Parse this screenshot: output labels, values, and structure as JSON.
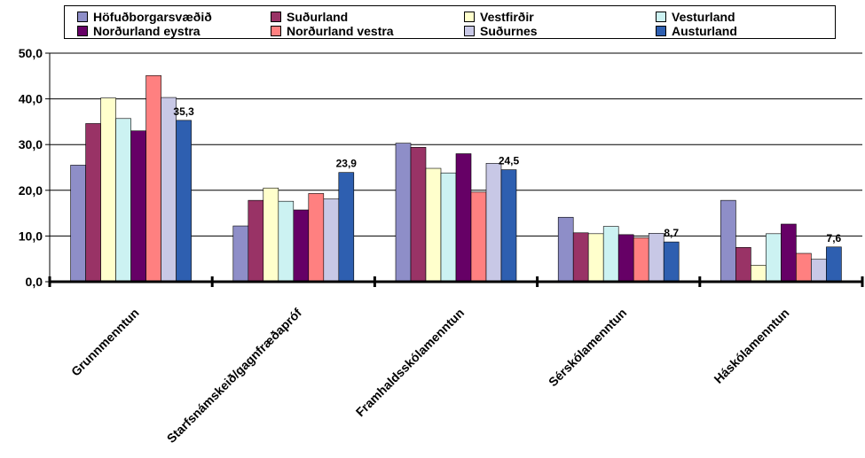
{
  "chart_data": {
    "type": "bar",
    "categories": [
      "Grunnmenntun",
      "Starfsnámskeið/gagnfræðapróf",
      "Framhaldsskólamenntun",
      "Sérskólamenntun",
      "Háskólamenntun"
    ],
    "series": [
      {
        "name": "Höfuðborgarsvæðið",
        "color": "#8e8ec8",
        "values": [
          25.5,
          12.2,
          30.3,
          14.1,
          17.8
        ]
      },
      {
        "name": "Suðurland",
        "color": "#993366",
        "values": [
          34.6,
          17.8,
          29.4,
          10.7,
          7.5
        ]
      },
      {
        "name": "Vestfirðir",
        "color": "#ffffcc",
        "values": [
          40.2,
          20.5,
          24.8,
          10.5,
          3.6
        ]
      },
      {
        "name": "Vesturland",
        "color": "#ccf2f2",
        "values": [
          35.7,
          17.6,
          23.8,
          12.1,
          10.5
        ]
      },
      {
        "name": "Norðurland eystra",
        "color": "#660066",
        "values": [
          33.0,
          15.7,
          28.0,
          10.3,
          12.6
        ]
      },
      {
        "name": "Norðurland vestra",
        "color": "#ff8080",
        "values": [
          45.1,
          19.3,
          19.6,
          9.6,
          6.2
        ]
      },
      {
        "name": "Suðurnes",
        "color": "#c8c8e6",
        "values": [
          40.3,
          18.1,
          25.9,
          10.6,
          4.9
        ]
      },
      {
        "name": "Austurland",
        "color": "#2e5fb0",
        "values": [
          35.3,
          23.9,
          24.5,
          8.7,
          7.6
        ]
      }
    ],
    "data_labels": [
      "35,3",
      "23,9",
      "24,5",
      "8,7",
      "7,6"
    ],
    "y_ticks": [
      "0,0",
      "10,0",
      "20,0",
      "30,0",
      "40,0",
      "50,0"
    ],
    "ylim": [
      0,
      50
    ],
    "grid": true,
    "legend_position": "top"
  }
}
